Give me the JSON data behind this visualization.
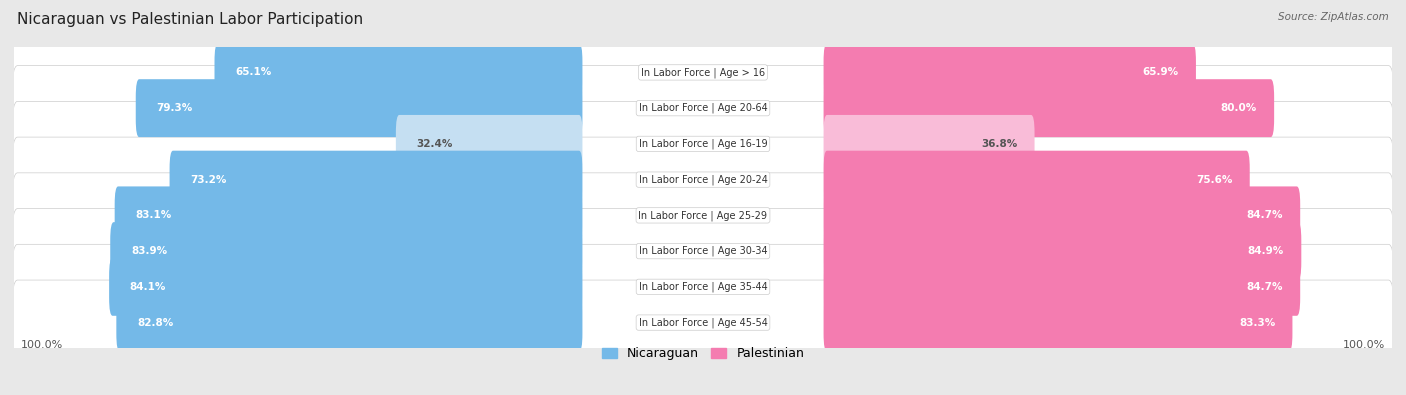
{
  "title": "Nicaraguan vs Palestinian Labor Participation",
  "source": "Source: ZipAtlas.com",
  "categories": [
    "In Labor Force | Age > 16",
    "In Labor Force | Age 20-64",
    "In Labor Force | Age 16-19",
    "In Labor Force | Age 20-24",
    "In Labor Force | Age 25-29",
    "In Labor Force | Age 30-34",
    "In Labor Force | Age 35-44",
    "In Labor Force | Age 45-54"
  ],
  "nicaraguan_values": [
    65.1,
    79.3,
    32.4,
    73.2,
    83.1,
    83.9,
    84.1,
    82.8
  ],
  "palestinian_values": [
    65.9,
    80.0,
    36.8,
    75.6,
    84.7,
    84.9,
    84.7,
    83.3
  ],
  "nicaraguan_color": "#74b9e8",
  "nicaraguan_color_light": "#c5dff2",
  "palestinian_color": "#f47cb0",
  "palestinian_color_light": "#f9bcd8",
  "background_color": "#e8e8e8",
  "row_bg_color": "#f5f5f5",
  "max_value": 100.0,
  "legend_nicaraguan": "Nicaraguan",
  "legend_palestinian": "Palestinian"
}
